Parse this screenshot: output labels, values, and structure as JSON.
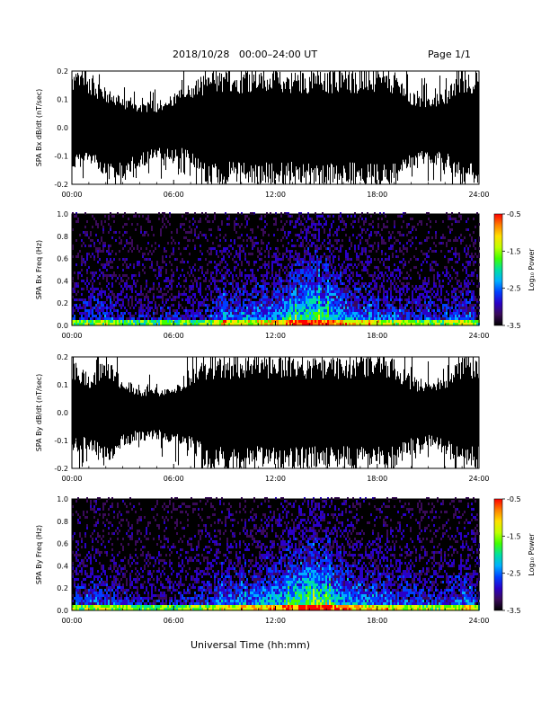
{
  "header": {
    "title": "2018/10/28   00:00–24:00 UT",
    "page": "Page 1/1"
  },
  "xaxis_title": "Universal Time (hh:mm)",
  "colorbar": {
    "label": "Log₁₀ Power",
    "ticks": [
      "-0.5",
      "-1.5",
      "-2.5",
      "-3.5"
    ],
    "range": [
      -3.5,
      -0.5
    ],
    "palette": [
      "#000000",
      "#3a0a5a",
      "#2a00c8",
      "#0040ff",
      "#00b0ff",
      "#00e0a0",
      "#40ff00",
      "#c0ff00",
      "#ffe000",
      "#ff8000",
      "#ff0000"
    ]
  },
  "chart_data": [
    {
      "type": "line",
      "ylabel": "SPA Bx dB/dt (nT/sec)",
      "x_ticks": [
        "00:00",
        "06:00",
        "12:00",
        "18:00",
        "24:00"
      ],
      "y_ticks": [
        "-0.2",
        "-0.1",
        "0.0",
        "0.1",
        "0.2"
      ],
      "xlim": [
        0,
        24
      ],
      "ylim": [
        -0.2,
        0.2
      ],
      "series": [
        {
          "x": [
            0,
            1,
            2,
            3,
            4,
            5,
            6,
            7,
            8,
            8.5,
            9,
            10,
            11,
            12,
            13,
            14,
            15,
            16,
            17,
            18,
            19,
            20,
            21,
            22,
            23,
            24
          ],
          "ymin": [
            -0.16,
            -0.12,
            -0.2,
            -0.2,
            -0.14,
            -0.12,
            -0.11,
            -0.13,
            -0.2,
            -0.2,
            -0.2,
            -0.2,
            -0.2,
            -0.2,
            -0.2,
            -0.2,
            -0.2,
            -0.2,
            -0.2,
            -0.2,
            -0.2,
            -0.14,
            -0.13,
            -0.14,
            -0.2,
            -0.2
          ],
          "ymax": [
            0.2,
            0.2,
            0.14,
            0.11,
            0.09,
            0.09,
            0.12,
            0.16,
            0.2,
            0.2,
            0.2,
            0.2,
            0.2,
            0.2,
            0.2,
            0.2,
            0.2,
            0.2,
            0.2,
            0.2,
            0.2,
            0.12,
            0.11,
            0.13,
            0.2,
            0.2
          ]
        }
      ]
    },
    {
      "type": "heatmap",
      "ylabel": "SPA Bx Freq (Hz)",
      "x_ticks": [
        "00:00",
        "06:00",
        "12:00",
        "18:00",
        "24:00"
      ],
      "y_ticks": [
        "0.0",
        "0.2",
        "0.4",
        "0.6",
        "0.8",
        "1.0"
      ],
      "xlim": [
        0,
        24
      ],
      "ylim": [
        0,
        1.0
      ],
      "color_range": [
        -3.5,
        -0.5
      ],
      "activity_profile": {
        "x": [
          0,
          2,
          4,
          6,
          8,
          9,
          10,
          12,
          13,
          14,
          15,
          16,
          18,
          20,
          22,
          23.5,
          24
        ],
        "level": [
          0.25,
          0.35,
          0.2,
          0.25,
          0.3,
          0.5,
          0.4,
          0.55,
          0.65,
          0.8,
          0.7,
          0.55,
          0.4,
          0.35,
          0.3,
          0.45,
          0.2
        ]
      }
    },
    {
      "type": "line",
      "ylabel": "SPA By dB/dt (nT/sec)",
      "x_ticks": [
        "00:00",
        "06:00",
        "12:00",
        "18:00",
        "24:00"
      ],
      "y_ticks": [
        "-0.2",
        "-0.1",
        "0.0",
        "0.1",
        "0.2"
      ],
      "xlim": [
        0,
        24
      ],
      "ylim": [
        -0.2,
        0.2
      ],
      "series": [
        {
          "x": [
            0,
            1,
            2,
            3,
            4,
            5,
            6,
            7,
            8,
            8.5,
            9,
            10,
            11,
            12,
            13,
            14,
            15,
            16,
            17,
            18,
            19,
            20,
            21,
            22,
            23,
            24
          ],
          "ymin": [
            -0.14,
            -0.14,
            -0.2,
            -0.12,
            -0.1,
            -0.1,
            -0.11,
            -0.14,
            -0.2,
            -0.2,
            -0.2,
            -0.2,
            -0.2,
            -0.2,
            -0.2,
            -0.2,
            -0.2,
            -0.2,
            -0.2,
            -0.2,
            -0.2,
            -0.15,
            -0.13,
            -0.16,
            -0.2,
            -0.2
          ],
          "ymax": [
            0.2,
            0.14,
            0.2,
            0.12,
            0.1,
            0.09,
            0.1,
            0.16,
            0.2,
            0.2,
            0.2,
            0.2,
            0.2,
            0.2,
            0.2,
            0.2,
            0.2,
            0.2,
            0.2,
            0.2,
            0.2,
            0.13,
            0.12,
            0.14,
            0.2,
            0.2
          ]
        }
      ]
    },
    {
      "type": "heatmap",
      "ylabel": "SPA By Freq (Hz)",
      "x_ticks": [
        "00:00",
        "06:00",
        "12:00",
        "18:00",
        "24:00"
      ],
      "y_ticks": [
        "0.0",
        "0.2",
        "0.4",
        "0.6",
        "0.8",
        "1.0"
      ],
      "xlim": [
        0,
        24
      ],
      "ylim": [
        0,
        1.0
      ],
      "color_range": [
        -3.5,
        -0.5
      ],
      "activity_profile": {
        "x": [
          0,
          2,
          4,
          6,
          8,
          9,
          10,
          12,
          13,
          14,
          15,
          16,
          18,
          20,
          22,
          23.5,
          24
        ],
        "level": [
          0.3,
          0.4,
          0.25,
          0.25,
          0.35,
          0.5,
          0.45,
          0.6,
          0.7,
          0.85,
          0.75,
          0.6,
          0.45,
          0.4,
          0.35,
          0.5,
          0.25
        ]
      }
    }
  ]
}
